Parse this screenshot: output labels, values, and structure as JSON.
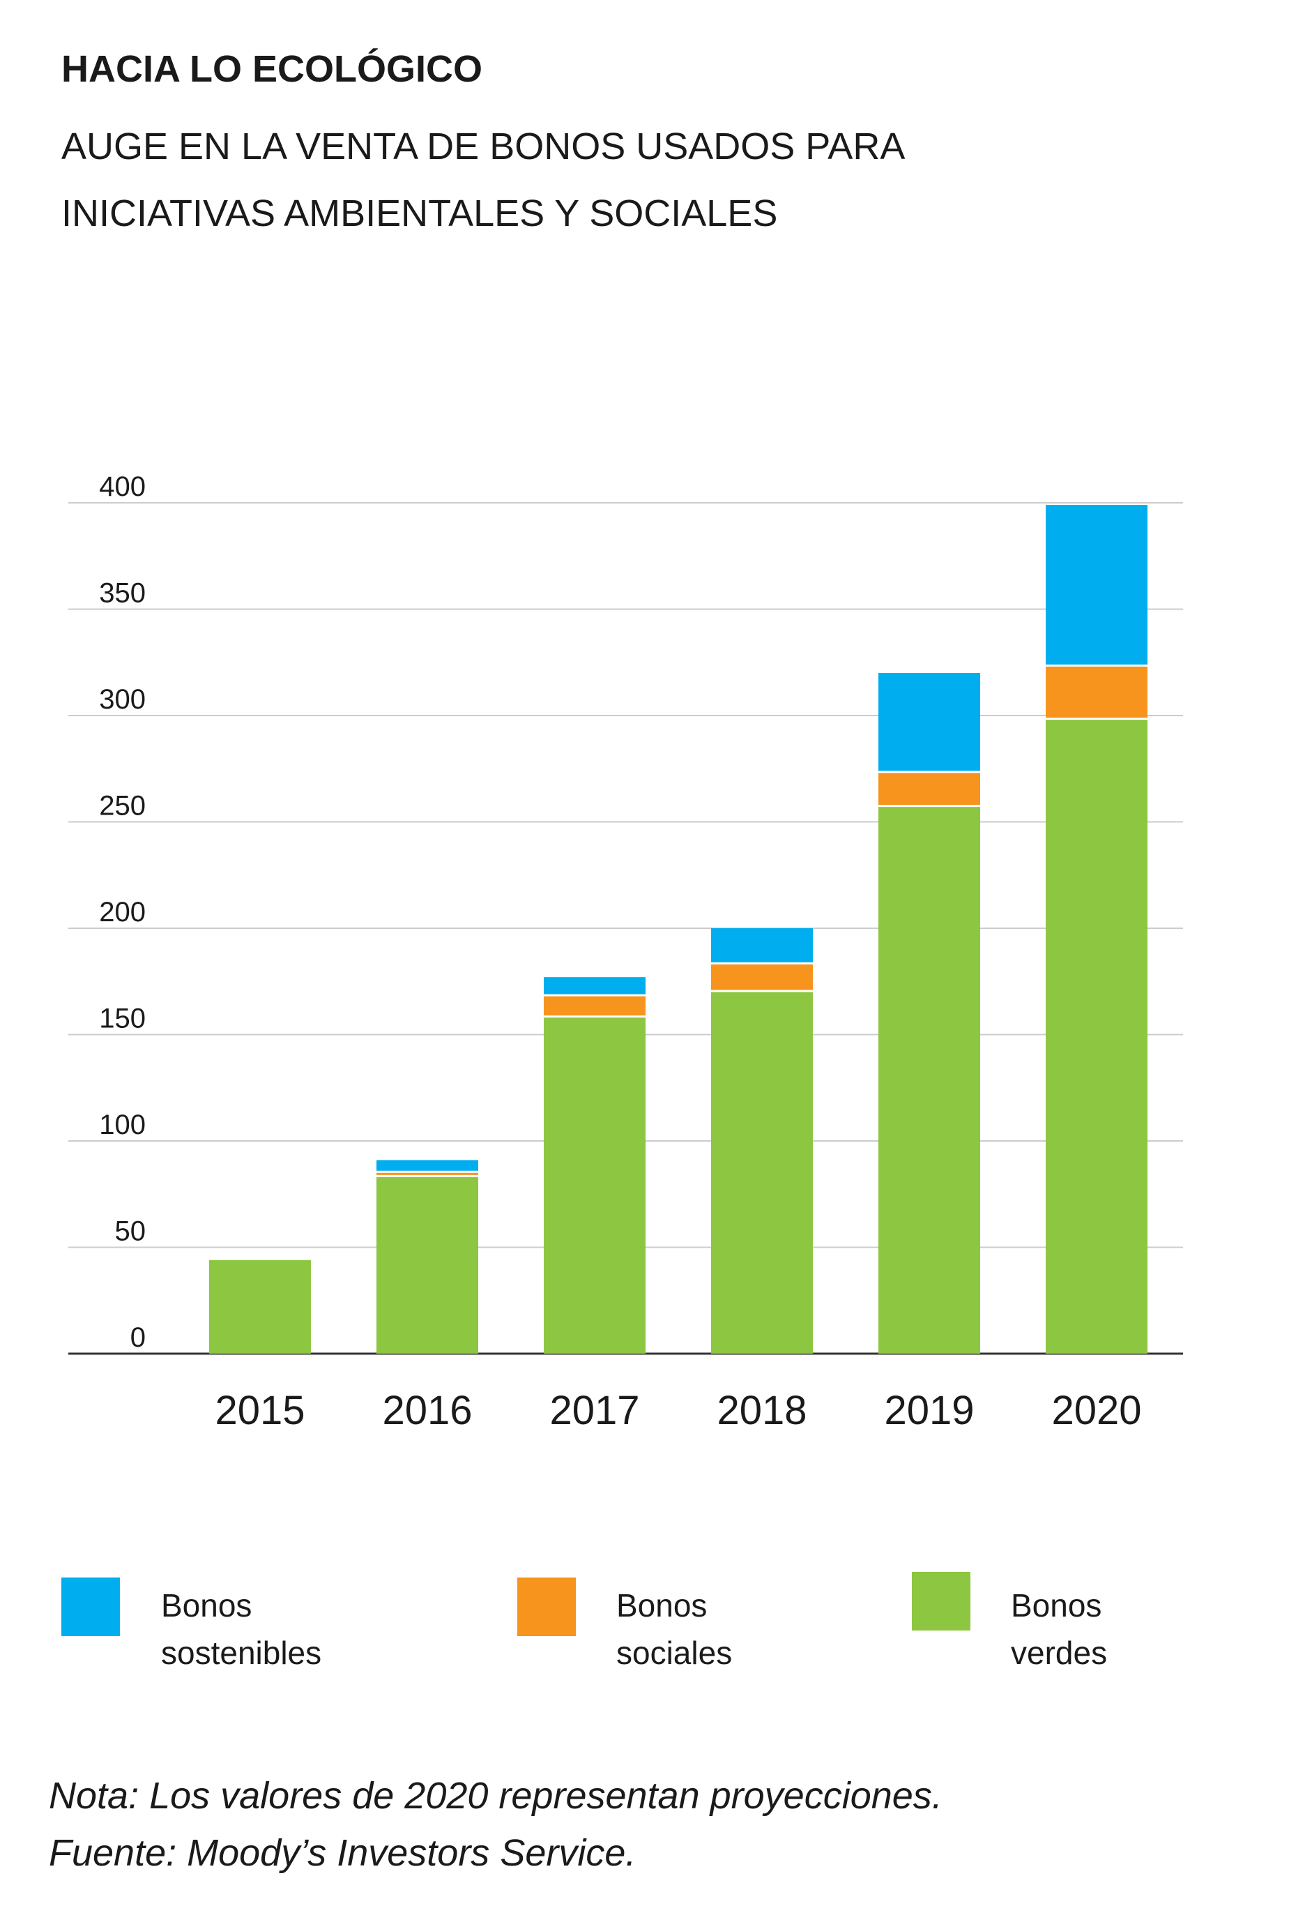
{
  "header": {
    "title": "HACIA LO ECOLÓGICO",
    "subtitle_line1": "AUGE EN LA VENTA DE BONOS USADOS PARA",
    "subtitle_line2": "INICIATIVAS AMBIENTALES Y SOCIALES"
  },
  "chart_data": {
    "type": "bar",
    "stacked": true,
    "categories": [
      "2015",
      "2016",
      "2017",
      "2018",
      "2019",
      "2020"
    ],
    "series": [
      {
        "name": "Bonos verdes",
        "color": "#8dc641",
        "values": [
          44,
          83,
          158,
          170,
          257,
          298
        ]
      },
      {
        "name": "Bonos sociales",
        "color": "#f7941d",
        "values": [
          0,
          2,
          10,
          13,
          16,
          25
        ]
      },
      {
        "name": "Bonos sostenibles",
        "color": "#00aeef",
        "values": [
          0,
          6,
          9,
          17,
          47,
          76
        ]
      }
    ],
    "yticks": [
      0,
      50,
      100,
      150,
      200,
      250,
      300,
      350,
      400
    ],
    "ylim": [
      0,
      400
    ],
    "grid": true,
    "legend_position": "bottom"
  },
  "legend": [
    {
      "key": "sostenibles",
      "line1": "Bonos",
      "line2": "sostenibles",
      "color": "#00aeef"
    },
    {
      "key": "sociales",
      "line1": "Bonos sociales",
      "line2": "",
      "color": "#f7941d"
    },
    {
      "key": "verdes",
      "line1": "Bonos verdes",
      "line2": "",
      "color": "#8dc641"
    }
  ],
  "footer": {
    "note": "Nota: Los valores de 2020 representan proyecciones.",
    "source": "Fuente: Moody’s Investors Service."
  }
}
